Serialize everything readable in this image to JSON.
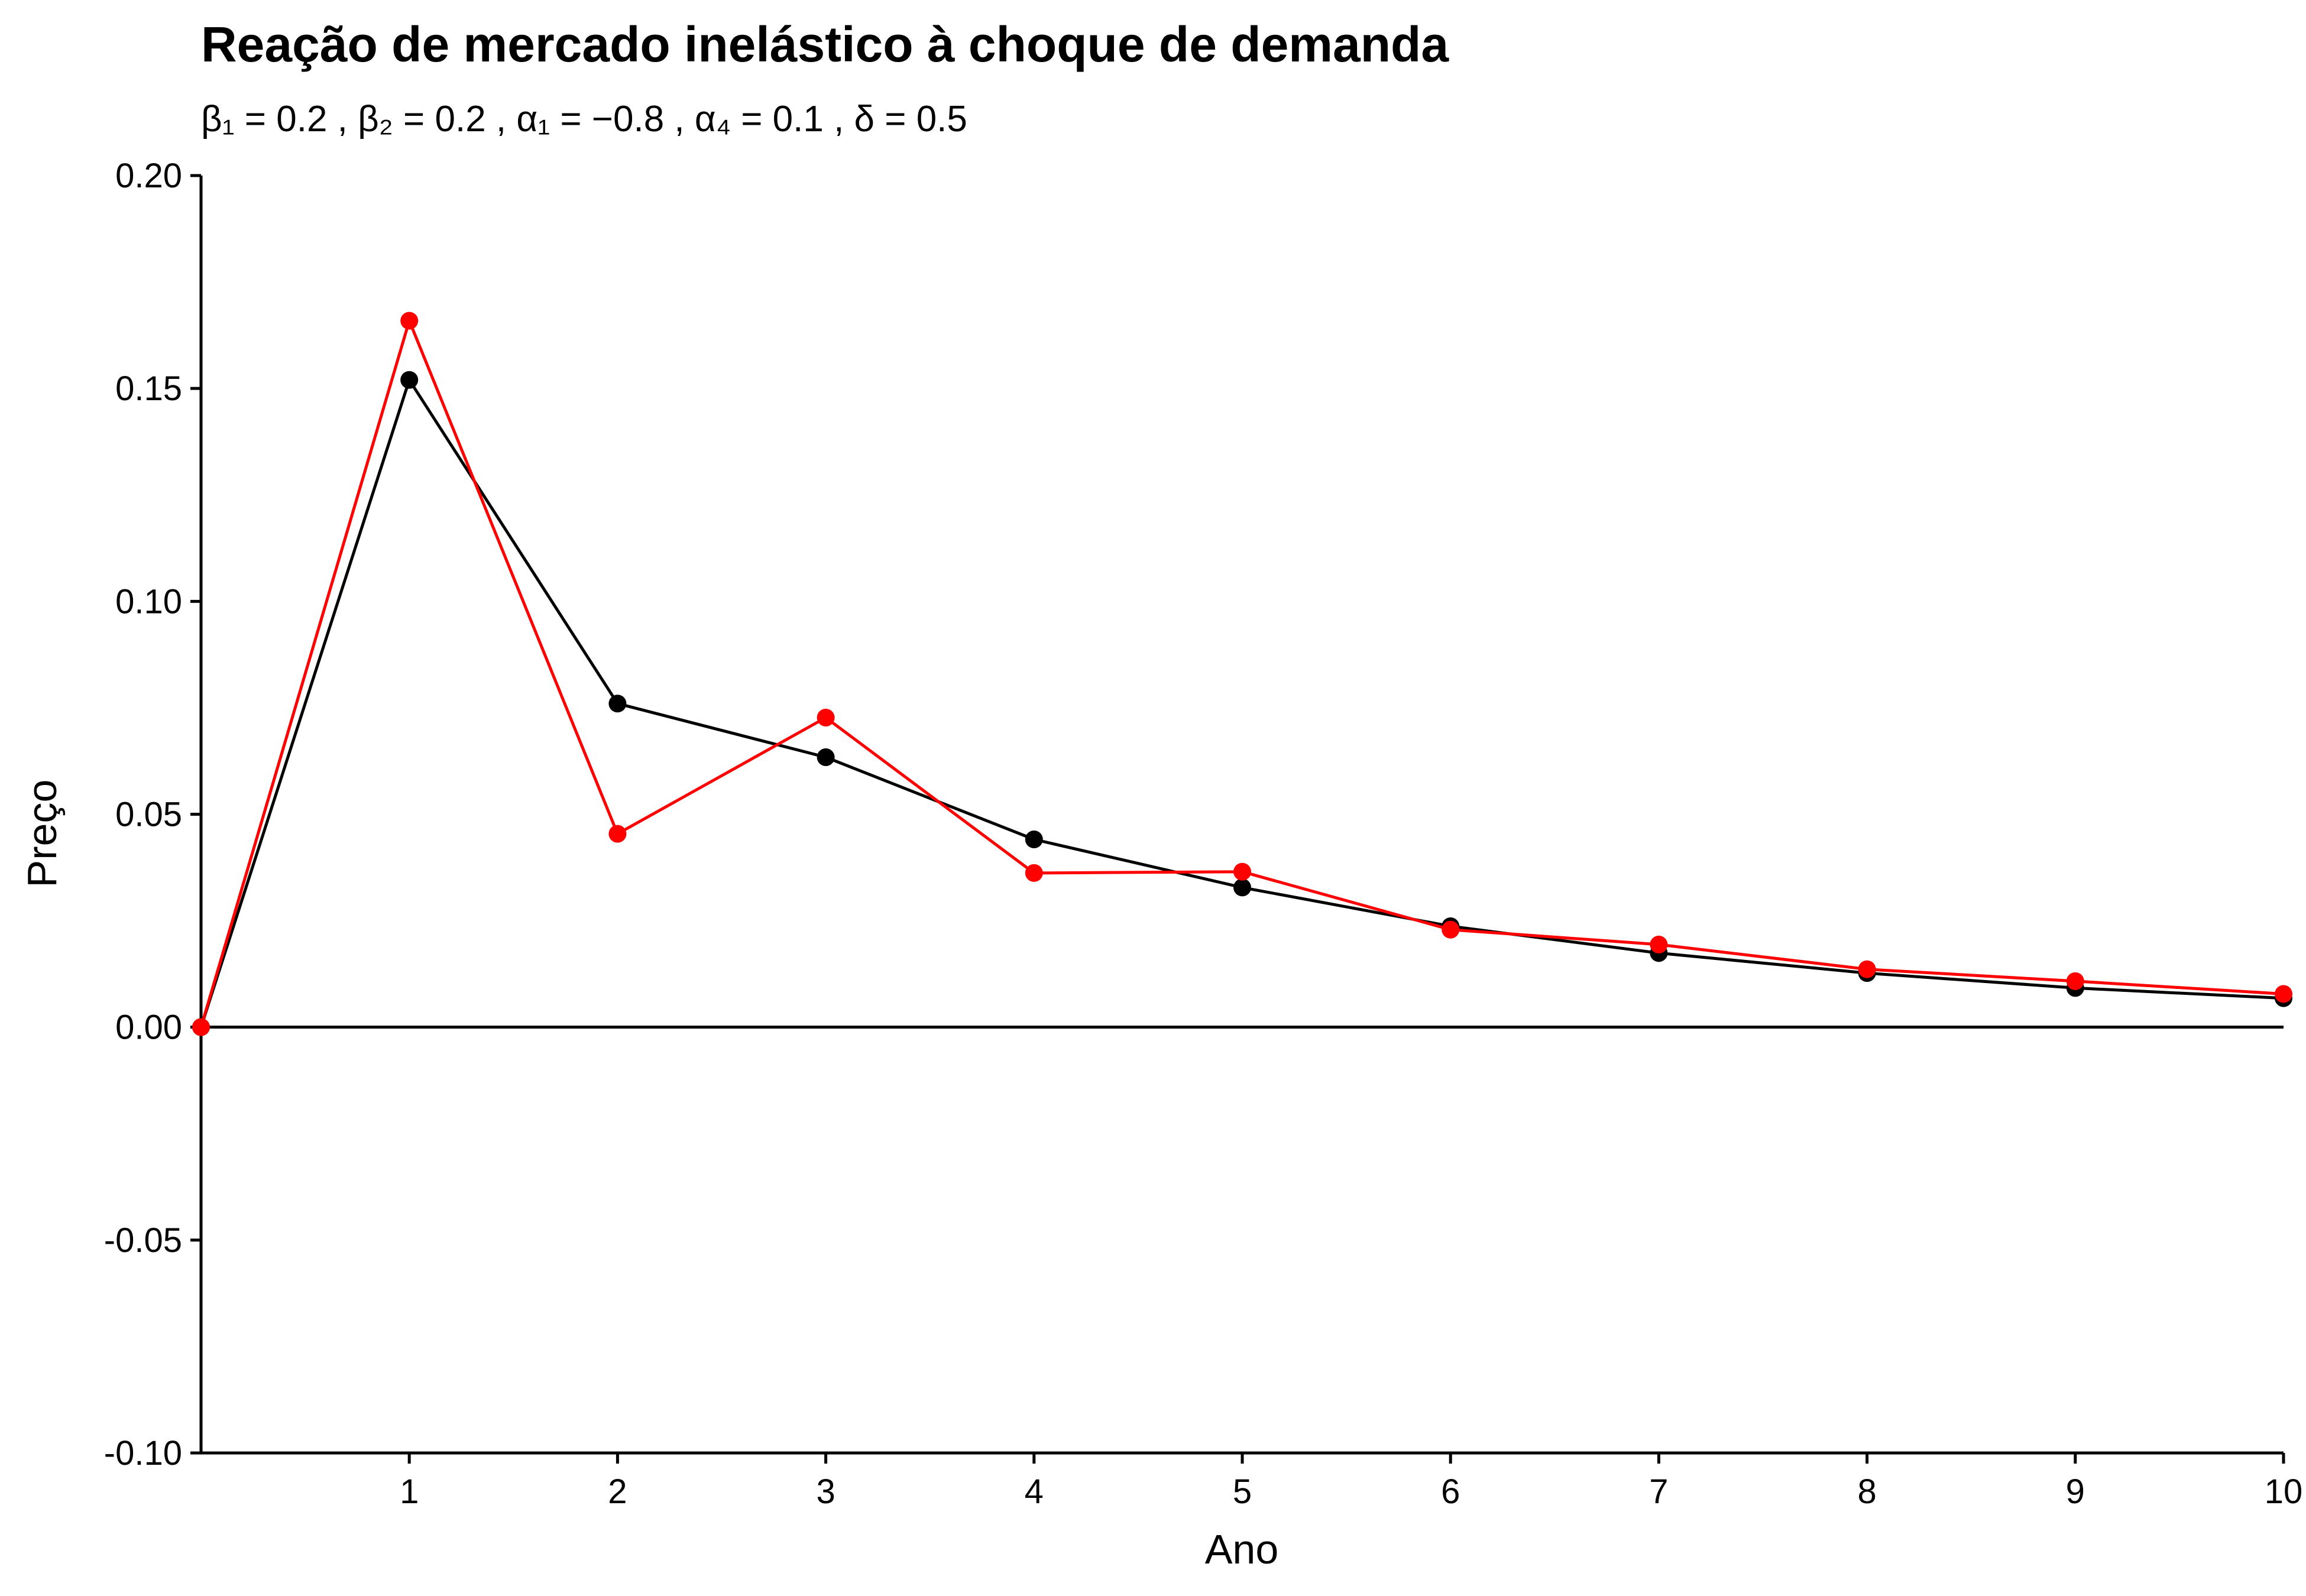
{
  "chart_data": {
    "type": "line",
    "title": "Reação de mercado inelástico à choque de demanda",
    "subtitle": "β₁ = 0.2 , β₂ = 0.2 , α₁ = −0.8 , α₄ = 0.1 , δ = 0.5",
    "xlabel": "Ano",
    "ylabel": "Preço",
    "xlim": [
      0,
      10
    ],
    "ylim": [
      -0.1,
      0.2
    ],
    "x_ticks": [
      1,
      2,
      3,
      4,
      5,
      6,
      7,
      8,
      9,
      10
    ],
    "x_tick_labels": [
      "1",
      "2",
      "3",
      "4",
      "5",
      "6",
      "7",
      "8",
      "9",
      "10"
    ],
    "y_ticks": [
      -0.1,
      -0.05,
      0,
      0.05,
      0.1,
      0.15,
      0.2
    ],
    "y_tick_labels": [
      "-0.10",
      "-0.05",
      "0.00",
      "0.05",
      "0.10",
      "0.15",
      "0.20"
    ],
    "reference_line_y": 0,
    "grid": false,
    "legend": "none",
    "x": [
      0,
      1,
      2,
      3,
      4,
      5,
      6,
      7,
      8,
      9,
      10
    ],
    "series": [
      {
        "color": "#000000",
        "values": [
          0,
          0.152,
          0.076,
          0.0634,
          0.0441,
          0.0328,
          0.0237,
          0.0174,
          0.0127,
          0.0092,
          0.0068
        ]
      },
      {
        "color": "#ff0000",
        "values": [
          0,
          0.1659,
          0.0454,
          0.0727,
          0.0362,
          0.0365,
          0.0229,
          0.0194,
          0.0136,
          0.0108,
          0.0078
        ]
      }
    ]
  }
}
